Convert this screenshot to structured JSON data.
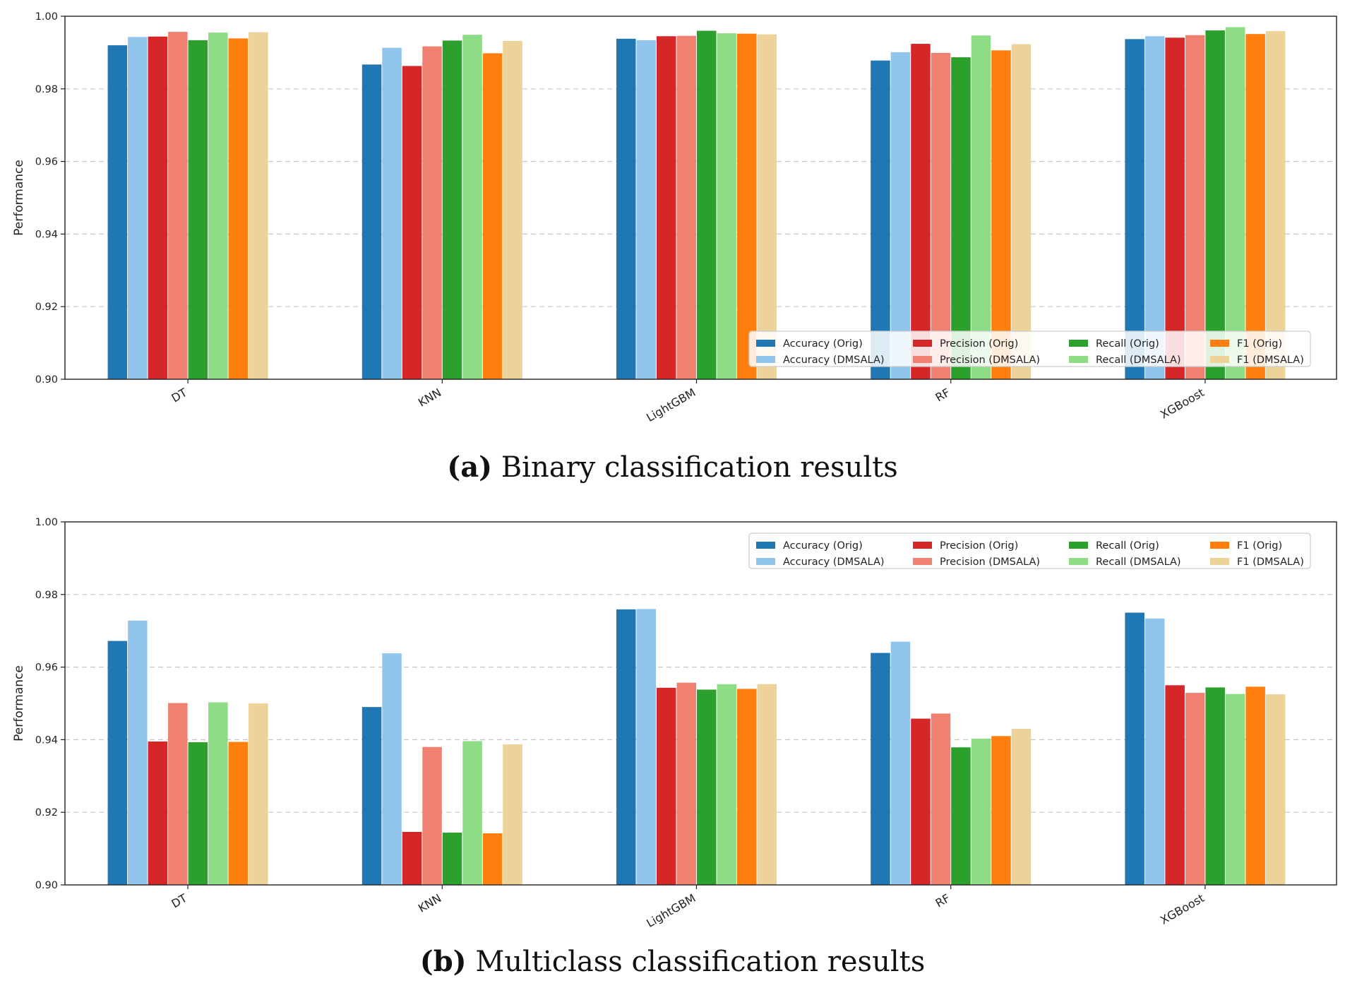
{
  "colors": {
    "Accuracy (Orig)": "#1f77b4",
    "Accuracy (DMSALA)": "#92c5eb",
    "Precision (Orig)": "#d62728",
    "Precision (DMSALA)": "#f08070",
    "Recall (Orig)": "#2ca02c",
    "Recall (DMSALA)": "#8fdc87",
    "F1 (Orig)": "#ff7f0e",
    "F1 (DMSALA)": "#edd299"
  },
  "chart_data": [
    {
      "type": "bar",
      "caption_label": "(a)",
      "caption_text": "Binary classification results",
      "ylabel": "Performance",
      "ylim": [
        0.9,
        1.0
      ],
      "yticks": [
        "0.90",
        "0.92",
        "0.94",
        "0.96",
        "0.98",
        "1.00"
      ],
      "grid": "horizontal dashed",
      "legend_position": "lower-right",
      "categories": [
        "DT",
        "KNN",
        "LightGBM",
        "RF",
        "XGBoost"
      ],
      "series": [
        {
          "name": "Accuracy (Orig)",
          "values": [
            0.992,
            0.9867,
            0.9938,
            0.9878,
            0.9937
          ]
        },
        {
          "name": "Accuracy (DMSALA)",
          "values": [
            0.9943,
            0.9913,
            0.9934,
            0.9901,
            0.9945
          ]
        },
        {
          "name": "Precision (Orig)",
          "values": [
            0.9944,
            0.9863,
            0.9945,
            0.9924,
            0.9941
          ]
        },
        {
          "name": "Precision (DMSALA)",
          "values": [
            0.9957,
            0.9917,
            0.9946,
            0.9899,
            0.9948
          ]
        },
        {
          "name": "Recall (Orig)",
          "values": [
            0.9934,
            0.9933,
            0.996,
            0.9887,
            0.9961
          ]
        },
        {
          "name": "Recall (DMSALA)",
          "values": [
            0.9955,
            0.9949,
            0.9953,
            0.9947,
            0.997
          ]
        },
        {
          "name": "F1 (Orig)",
          "values": [
            0.9939,
            0.9898,
            0.9952,
            0.9906,
            0.9951
          ]
        },
        {
          "name": "F1 (DMSALA)",
          "values": [
            0.9956,
            0.9932,
            0.995,
            0.9923,
            0.9959
          ]
        }
      ]
    },
    {
      "type": "bar",
      "caption_label": "(b)",
      "caption_text": "Multiclass classification results",
      "ylabel": "Performance",
      "ylim": [
        0.9,
        1.0
      ],
      "yticks": [
        "0.90",
        "0.92",
        "0.94",
        "0.96",
        "0.98",
        "1.00"
      ],
      "grid": "horizontal dashed",
      "legend_position": "upper-right",
      "categories": [
        "DT",
        "KNN",
        "LightGBM",
        "RF",
        "XGBoost"
      ],
      "series": [
        {
          "name": "Accuracy (Orig)",
          "values": [
            0.9672,
            0.949,
            0.9759,
            0.9639,
            0.975
          ]
        },
        {
          "name": "Accuracy (DMSALA)",
          "values": [
            0.9728,
            0.9638,
            0.976,
            0.967,
            0.9734
          ]
        },
        {
          "name": "Precision (Orig)",
          "values": [
            0.9395,
            0.9146,
            0.9543,
            0.9458,
            0.955
          ]
        },
        {
          "name": "Precision (DMSALA)",
          "values": [
            0.9501,
            0.938,
            0.9557,
            0.9472,
            0.9529
          ]
        },
        {
          "name": "Recall (Orig)",
          "values": [
            0.9393,
            0.9144,
            0.9538,
            0.9379,
            0.9544
          ]
        },
        {
          "name": "Recall (DMSALA)",
          "values": [
            0.9503,
            0.9396,
            0.9553,
            0.9403,
            0.9526
          ]
        },
        {
          "name": "F1 (Orig)",
          "values": [
            0.9394,
            0.9142,
            0.954,
            0.941,
            0.9546
          ]
        },
        {
          "name": "F1 (DMSALA)",
          "values": [
            0.95,
            0.9387,
            0.9553,
            0.943,
            0.9525
          ]
        }
      ]
    }
  ]
}
